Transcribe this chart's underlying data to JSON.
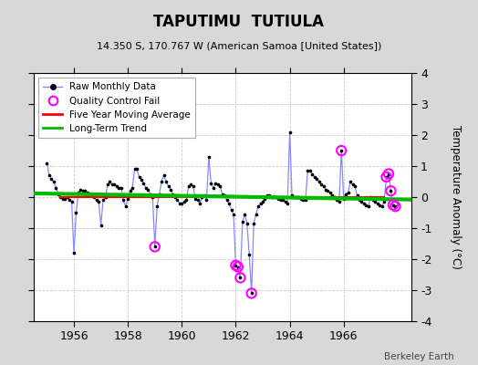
{
  "title": "TAPUTIMU  TUTIULA",
  "subtitle": "14.350 S, 170.767 W (American Samoa [United States])",
  "ylabel": "Temperature Anomaly (°C)",
  "watermark": "Berkeley Earth",
  "xlim": [
    1954.5,
    1968.5
  ],
  "ylim": [
    -4,
    4
  ],
  "yticks": [
    -4,
    -3,
    -2,
    -1,
    0,
    1,
    2,
    3,
    4
  ],
  "xticks": [
    1956,
    1958,
    1960,
    1962,
    1964,
    1966
  ],
  "fig_bg_color": "#d8d8d8",
  "plot_bg_color": "#ffffff",
  "raw_line_color": "#8888ff",
  "raw_marker_color": "#000000",
  "qc_fail_color": "#ff00ff",
  "moving_avg_color": "#ff0000",
  "trend_color": "#00bb00",
  "grid_color": "#cccccc",
  "raw_data": [
    [
      1955.0,
      1.1
    ],
    [
      1955.083,
      0.7
    ],
    [
      1955.167,
      0.6
    ],
    [
      1955.25,
      0.5
    ],
    [
      1955.333,
      0.3
    ],
    [
      1955.417,
      0.1
    ],
    [
      1955.5,
      0.0
    ],
    [
      1955.583,
      -0.05
    ],
    [
      1955.667,
      -0.05
    ],
    [
      1955.75,
      0.0
    ],
    [
      1955.833,
      -0.1
    ],
    [
      1955.917,
      -0.15
    ],
    [
      1956.0,
      -1.8
    ],
    [
      1956.083,
      -0.5
    ],
    [
      1956.167,
      0.15
    ],
    [
      1956.25,
      0.25
    ],
    [
      1956.333,
      0.2
    ],
    [
      1956.417,
      0.2
    ],
    [
      1956.5,
      0.15
    ],
    [
      1956.583,
      0.1
    ],
    [
      1956.667,
      0.05
    ],
    [
      1956.75,
      0.0
    ],
    [
      1956.833,
      -0.1
    ],
    [
      1956.917,
      -0.15
    ],
    [
      1957.0,
      -0.9
    ],
    [
      1957.083,
      -0.1
    ],
    [
      1957.167,
      0.0
    ],
    [
      1957.25,
      0.4
    ],
    [
      1957.333,
      0.5
    ],
    [
      1957.417,
      0.4
    ],
    [
      1957.5,
      0.4
    ],
    [
      1957.583,
      0.35
    ],
    [
      1957.667,
      0.3
    ],
    [
      1957.75,
      0.3
    ],
    [
      1957.833,
      -0.1
    ],
    [
      1957.917,
      -0.3
    ],
    [
      1958.0,
      -0.05
    ],
    [
      1958.083,
      0.2
    ],
    [
      1958.167,
      0.3
    ],
    [
      1958.25,
      0.9
    ],
    [
      1958.333,
      0.9
    ],
    [
      1958.417,
      0.65
    ],
    [
      1958.5,
      0.55
    ],
    [
      1958.583,
      0.45
    ],
    [
      1958.667,
      0.3
    ],
    [
      1958.75,
      0.25
    ],
    [
      1958.833,
      0.1
    ],
    [
      1958.917,
      0.0
    ],
    [
      1959.0,
      -1.6
    ],
    [
      1959.083,
      -0.3
    ],
    [
      1959.167,
      0.1
    ],
    [
      1959.25,
      0.5
    ],
    [
      1959.333,
      0.7
    ],
    [
      1959.417,
      0.5
    ],
    [
      1959.5,
      0.35
    ],
    [
      1959.583,
      0.25
    ],
    [
      1959.667,
      0.1
    ],
    [
      1959.75,
      0.0
    ],
    [
      1959.833,
      -0.1
    ],
    [
      1959.917,
      -0.2
    ],
    [
      1960.0,
      -0.2
    ],
    [
      1960.083,
      -0.15
    ],
    [
      1960.167,
      -0.1
    ],
    [
      1960.25,
      0.35
    ],
    [
      1960.333,
      0.4
    ],
    [
      1960.417,
      0.35
    ],
    [
      1960.5,
      -0.05
    ],
    [
      1960.583,
      -0.1
    ],
    [
      1960.667,
      -0.2
    ],
    [
      1960.75,
      0.0
    ],
    [
      1960.833,
      0.05
    ],
    [
      1960.917,
      -0.1
    ],
    [
      1961.0,
      1.3
    ],
    [
      1961.083,
      0.45
    ],
    [
      1961.167,
      0.3
    ],
    [
      1961.25,
      0.45
    ],
    [
      1961.333,
      0.4
    ],
    [
      1961.417,
      0.35
    ],
    [
      1961.5,
      0.1
    ],
    [
      1961.583,
      0.05
    ],
    [
      1961.667,
      -0.1
    ],
    [
      1961.75,
      -0.2
    ],
    [
      1961.833,
      -0.4
    ],
    [
      1961.917,
      -0.55
    ],
    [
      1962.0,
      -2.2
    ],
    [
      1962.083,
      -2.25
    ],
    [
      1962.167,
      -2.6
    ],
    [
      1962.25,
      -0.8
    ],
    [
      1962.333,
      -0.55
    ],
    [
      1962.417,
      -0.85
    ],
    [
      1962.5,
      -1.85
    ],
    [
      1962.583,
      -3.1
    ],
    [
      1962.667,
      -0.85
    ],
    [
      1962.75,
      -0.55
    ],
    [
      1962.833,
      -0.3
    ],
    [
      1962.917,
      -0.2
    ],
    [
      1963.0,
      -0.15
    ],
    [
      1963.083,
      -0.05
    ],
    [
      1963.167,
      0.05
    ],
    [
      1963.25,
      0.05
    ],
    [
      1963.333,
      0.0
    ],
    [
      1963.417,
      0.0
    ],
    [
      1963.5,
      0.0
    ],
    [
      1963.583,
      -0.05
    ],
    [
      1963.667,
      -0.1
    ],
    [
      1963.75,
      -0.1
    ],
    [
      1963.833,
      -0.15
    ],
    [
      1963.917,
      -0.2
    ],
    [
      1964.0,
      2.1
    ],
    [
      1964.083,
      0.05
    ],
    [
      1964.167,
      0.0
    ],
    [
      1964.25,
      0.0
    ],
    [
      1964.333,
      0.0
    ],
    [
      1964.417,
      -0.05
    ],
    [
      1964.5,
      -0.1
    ],
    [
      1964.583,
      -0.1
    ],
    [
      1964.667,
      0.85
    ],
    [
      1964.75,
      0.85
    ],
    [
      1964.833,
      0.75
    ],
    [
      1964.917,
      0.65
    ],
    [
      1965.0,
      0.6
    ],
    [
      1965.083,
      0.5
    ],
    [
      1965.167,
      0.4
    ],
    [
      1965.25,
      0.35
    ],
    [
      1965.333,
      0.25
    ],
    [
      1965.417,
      0.2
    ],
    [
      1965.5,
      0.15
    ],
    [
      1965.583,
      0.05
    ],
    [
      1965.667,
      0.0
    ],
    [
      1965.75,
      -0.1
    ],
    [
      1965.833,
      -0.15
    ],
    [
      1965.917,
      1.5
    ],
    [
      1966.0,
      -0.05
    ],
    [
      1966.083,
      0.1
    ],
    [
      1966.167,
      0.15
    ],
    [
      1966.25,
      0.5
    ],
    [
      1966.333,
      0.4
    ],
    [
      1966.417,
      0.35
    ],
    [
      1966.5,
      0.05
    ],
    [
      1966.583,
      -0.1
    ],
    [
      1966.667,
      -0.15
    ],
    [
      1966.75,
      -0.2
    ],
    [
      1966.833,
      -0.25
    ],
    [
      1966.917,
      -0.3
    ],
    [
      1967.0,
      0.0
    ],
    [
      1967.083,
      -0.1
    ],
    [
      1967.167,
      -0.15
    ],
    [
      1967.25,
      -0.2
    ],
    [
      1967.333,
      -0.25
    ],
    [
      1967.417,
      -0.3
    ],
    [
      1967.5,
      -0.15
    ],
    [
      1967.583,
      0.65
    ],
    [
      1967.667,
      0.75
    ],
    [
      1967.75,
      0.2
    ],
    [
      1967.833,
      -0.25
    ],
    [
      1967.917,
      -0.3
    ]
  ],
  "qc_fail_points": [
    [
      1959.0,
      -1.6
    ],
    [
      1962.0,
      -2.2
    ],
    [
      1962.083,
      -2.25
    ],
    [
      1962.167,
      -2.6
    ],
    [
      1962.583,
      -3.1
    ],
    [
      1965.917,
      1.5
    ],
    [
      1967.583,
      0.65
    ],
    [
      1967.667,
      0.75
    ],
    [
      1967.75,
      0.2
    ],
    [
      1967.833,
      -0.25
    ],
    [
      1967.917,
      -0.3
    ]
  ],
  "moving_avg_x": [
    1955.5,
    1956.5,
    1957.5,
    1958.5,
    1959.5,
    1960.5,
    1961.5,
    1962.5,
    1963.5,
    1964.5,
    1965.5,
    1966.5,
    1967.5
  ],
  "moving_avg_y": [
    0.0,
    0.0,
    0.0,
    0.0,
    0.0,
    0.0,
    0.0,
    0.0,
    0.0,
    0.0,
    0.0,
    0.0,
    0.0
  ],
  "trend_x": [
    1954.5,
    1968.5
  ],
  "trend_y": [
    0.12,
    -0.08
  ]
}
